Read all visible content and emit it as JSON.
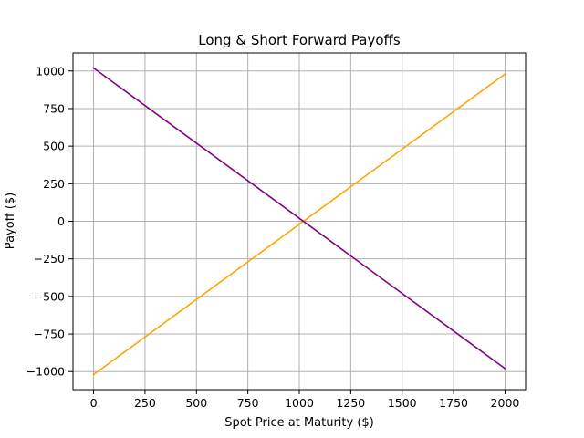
{
  "chart_data": {
    "type": "line",
    "title": "Long & Short Forward Payoffs",
    "xlabel": "Spot Price at Maturity ($)",
    "ylabel": "Payoff ($)",
    "xlim": [
      -100,
      2100
    ],
    "ylim": [
      -1120,
      1120
    ],
    "x_ticks": [
      0,
      250,
      500,
      750,
      1000,
      1250,
      1500,
      1750,
      2000
    ],
    "x_tick_labels": [
      "0",
      "250",
      "500",
      "750",
      "1000",
      "1250",
      "1500",
      "1750",
      "2000"
    ],
    "y_ticks": [
      -1000,
      -750,
      -500,
      -250,
      0,
      250,
      500,
      750,
      1000
    ],
    "y_tick_labels": [
      "−1000",
      "−750",
      "−500",
      "−250",
      "0",
      "250",
      "500",
      "750",
      "1000"
    ],
    "grid": true,
    "series": [
      {
        "x": [
          0,
          2000
        ],
        "y": [
          -1020,
          980
        ],
        "color": "#ffa500"
      },
      {
        "x": [
          0,
          2000
        ],
        "y": [
          1020,
          -980
        ],
        "color": "#800080"
      }
    ]
  }
}
